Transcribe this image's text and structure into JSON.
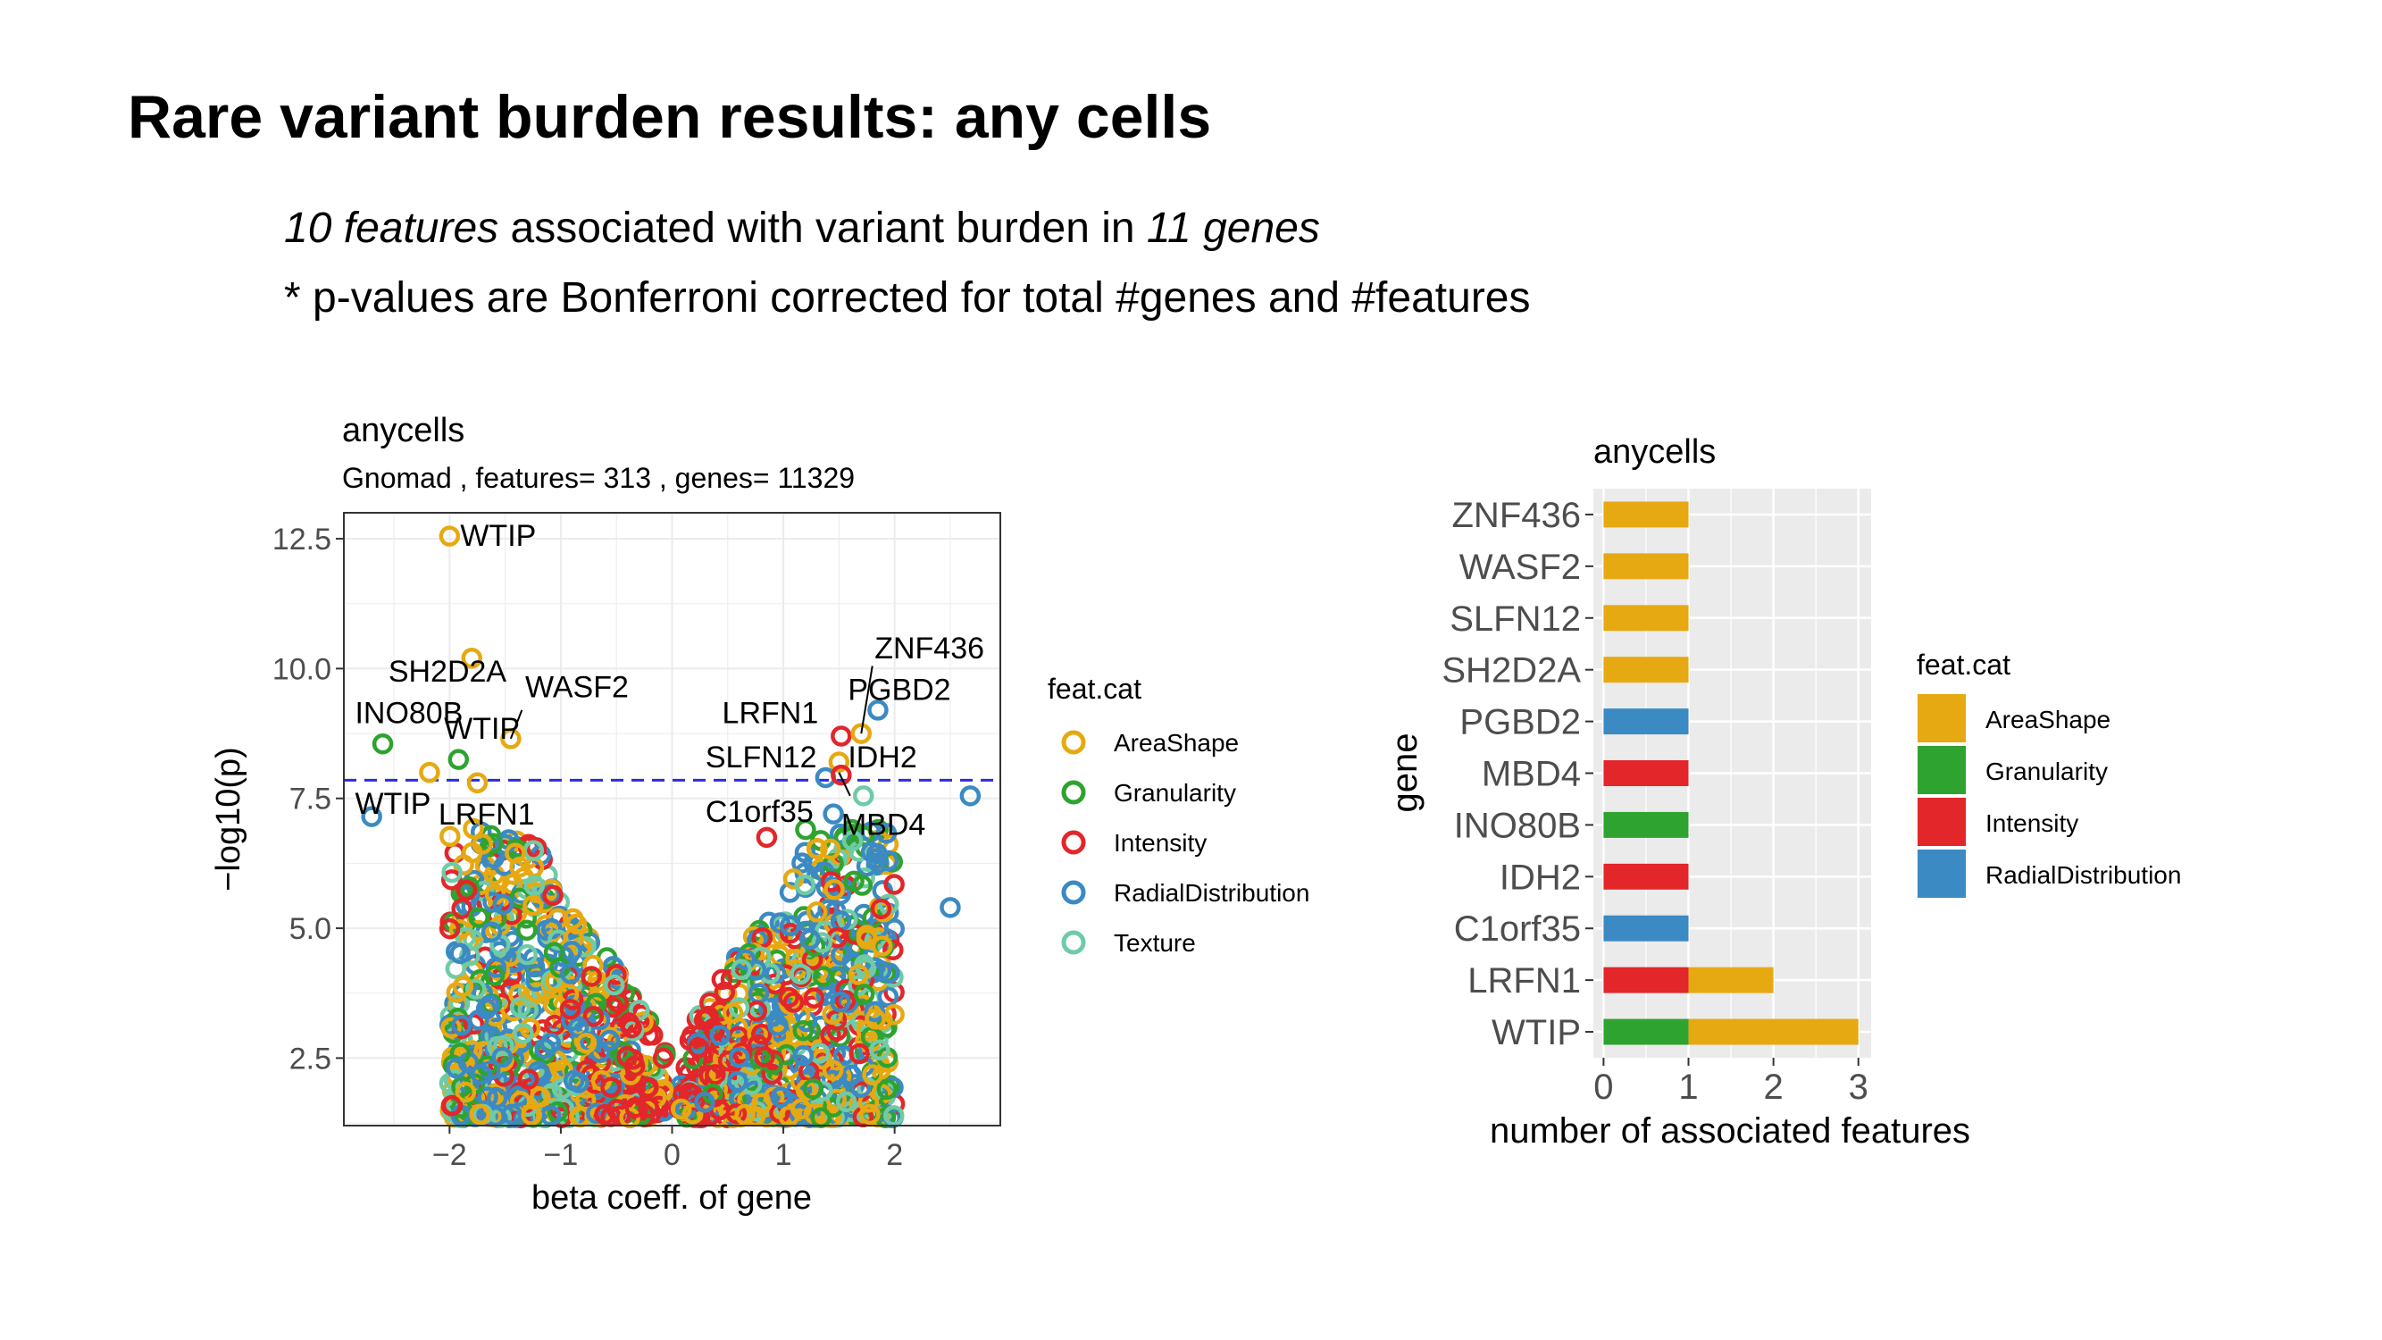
{
  "slide": {
    "title": "Rare variant burden results: any cells",
    "line1_em1": "10 features",
    "line1_mid": " associated with variant burden in ",
    "line1_em2": "11 genes",
    "line2": "* p-values are Bonferroni corrected for total #genes and #features"
  },
  "colors": {
    "AreaShape": "#E6A911",
    "Granularity": "#2FA32F",
    "Intensity": "#E3262A",
    "RadialDistribution": "#3B8AC3",
    "Texture": "#6FCBA6",
    "threshold": "#2A2BE0",
    "panel_bg": "#EBEBEB"
  },
  "chart_data": [
    {
      "type": "scatter",
      "title": "anycells",
      "subtitle": "Gnomad , features= 313 , genes= 11329",
      "xlabel": "beta coeff. of gene",
      "ylabel": "−log10(p)",
      "xlim": [
        -2.95,
        2.95
      ],
      "ylim": [
        1.2,
        13.0
      ],
      "xticks": [
        -2,
        -1,
        0,
        1,
        2
      ],
      "xtick_labels": [
        "−2",
        "−1",
        "0",
        "1",
        "2"
      ],
      "yticks": [
        2.5,
        5.0,
        7.5,
        10.0,
        12.5
      ],
      "ytick_labels": [
        "2.5",
        "5.0",
        "7.5",
        "10.0",
        "12.5"
      ],
      "grid": true,
      "threshold_y": 7.85,
      "legend_title": "feat.cat",
      "legend_placement": "right",
      "legend": [
        "AreaShape",
        "Granularity",
        "Intensity",
        "RadialDistribution",
        "Texture"
      ],
      "highlighted_points": [
        {
          "x": -2.0,
          "y": 12.55,
          "cat": "AreaShape",
          "label": "WTIP"
        },
        {
          "x": -1.8,
          "y": 10.2,
          "cat": "AreaShape"
        },
        {
          "x": -1.45,
          "y": 8.65,
          "cat": "AreaShape",
          "label": "WASF2"
        },
        {
          "x": -2.6,
          "y": 8.55,
          "cat": "Granularity"
        },
        {
          "x": -1.92,
          "y": 8.25,
          "cat": "Granularity"
        },
        {
          "x": -2.18,
          "y": 8.0,
          "cat": "AreaShape"
        },
        {
          "x": -1.75,
          "y": 7.8,
          "cat": "AreaShape"
        },
        {
          "x": -2.7,
          "y": 7.15,
          "cat": "RadialDistribution"
        },
        {
          "x": 1.52,
          "y": 8.7,
          "cat": "Intensity"
        },
        {
          "x": 1.7,
          "y": 8.75,
          "cat": "AreaShape"
        },
        {
          "x": 1.85,
          "y": 9.2,
          "cat": "RadialDistribution"
        },
        {
          "x": 1.5,
          "y": 8.2,
          "cat": "AreaShape"
        },
        {
          "x": 1.38,
          "y": 7.9,
          "cat": "RadialDistribution"
        },
        {
          "x": 1.52,
          "y": 7.95,
          "cat": "Intensity"
        },
        {
          "x": 1.72,
          "y": 7.55,
          "cat": "Texture"
        },
        {
          "x": 1.45,
          "y": 7.2,
          "cat": "RadialDistribution"
        },
        {
          "x": 0.85,
          "y": 6.75,
          "cat": "Intensity"
        },
        {
          "x": 1.2,
          "y": 6.9,
          "cat": "Granularity"
        },
        {
          "x": 2.68,
          "y": 7.55,
          "cat": "RadialDistribution"
        },
        {
          "x": 2.5,
          "y": 5.4,
          "cat": "RadialDistribution"
        }
      ],
      "text_labels": [
        {
          "text": "SH2D2A",
          "x": -2.55,
          "y": 9.75
        },
        {
          "text": "INO80B",
          "x": -2.85,
          "y": 8.95
        },
        {
          "text": "WTIP",
          "x": -2.05,
          "y": 8.65
        },
        {
          "text": "WASF2",
          "x": -1.32,
          "y": 9.45
        },
        {
          "text": "WTIP",
          "x": -2.85,
          "y": 7.2
        },
        {
          "text": "LRFN1",
          "x": -2.1,
          "y": 7.0
        },
        {
          "text": "ZNF436",
          "x": 1.82,
          "y": 10.2
        },
        {
          "text": "PGBD2",
          "x": 1.58,
          "y": 9.4
        },
        {
          "text": "LRFN1",
          "x": 0.45,
          "y": 8.95
        },
        {
          "text": "SLFN12",
          "x": 0.3,
          "y": 8.1
        },
        {
          "text": "IDH2",
          "x": 1.58,
          "y": 8.1
        },
        {
          "text": "C1orf35",
          "x": 0.3,
          "y": 7.05
        },
        {
          "text": "MBD4",
          "x": 1.52,
          "y": 6.8
        }
      ]
    },
    {
      "type": "bar",
      "orientation": "horizontal",
      "stacked": true,
      "title": "anycells",
      "xlabel": "number of associated features",
      "ylabel": "gene",
      "xlim": [
        -0.12,
        3.15
      ],
      "xticks": [
        0,
        1,
        2,
        3
      ],
      "xtick_labels": [
        "0",
        "1",
        "2",
        "3"
      ],
      "categories": [
        "ZNF436",
        "WASF2",
        "SLFN12",
        "SH2D2A",
        "PGBD2",
        "MBD4",
        "INO80B",
        "IDH2",
        "C1orf35",
        "LRFN1",
        "WTIP"
      ],
      "series": [
        {
          "name": "Granularity",
          "values": [
            0,
            0,
            0,
            0,
            0,
            0,
            1,
            0,
            0,
            0,
            1
          ]
        },
        {
          "name": "Intensity",
          "values": [
            0,
            0,
            0,
            0,
            0,
            1,
            0,
            1,
            0,
            1,
            0
          ]
        },
        {
          "name": "RadialDistribution",
          "values": [
            0,
            0,
            0,
            0,
            1,
            0,
            0,
            0,
            1,
            0,
            0
          ]
        },
        {
          "name": "AreaShape",
          "values": [
            1,
            1,
            1,
            1,
            0,
            0,
            0,
            0,
            0,
            1,
            2
          ]
        }
      ],
      "legend_title": "feat.cat",
      "legend_placement": "right",
      "legend": [
        "AreaShape",
        "Granularity",
        "Intensity",
        "RadialDistribution"
      ],
      "grid": false
    }
  ]
}
